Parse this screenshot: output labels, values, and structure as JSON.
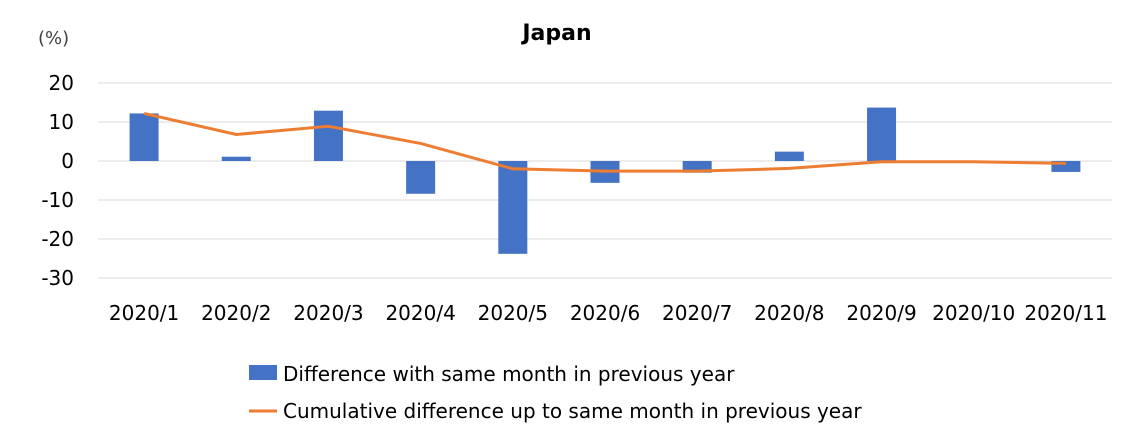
{
  "chart_data": {
    "type": "bar",
    "title": "Japan",
    "ylabel": "(%)",
    "xlabel": "",
    "ylim": [
      -30,
      20
    ],
    "yticks": [
      20,
      10,
      0,
      -10,
      -20,
      -30
    ],
    "grid": true,
    "legend_position": "bottom",
    "categories": [
      "2020/1",
      "2020/2",
      "2020/3",
      "2020/4",
      "2020/5",
      "2020/6",
      "2020/7",
      "2020/8",
      "2020/9",
      "2020/10",
      "2020/11"
    ],
    "series": [
      {
        "name": "Difference with same month in previous year",
        "type": "bar",
        "color": "#4472C4",
        "values": [
          12.2,
          1.1,
          12.9,
          -8.4,
          -23.8,
          -5.6,
          -3.0,
          2.4,
          13.7,
          -0.1,
          -2.8
        ]
      },
      {
        "name": "Cumulative difference up to same month in previous year",
        "type": "line",
        "color": "#ED7D31",
        "values": [
          12.2,
          6.8,
          8.9,
          4.5,
          -2.0,
          -2.6,
          -2.6,
          -1.9,
          -0.2,
          -0.2,
          -0.6
        ]
      }
    ]
  }
}
